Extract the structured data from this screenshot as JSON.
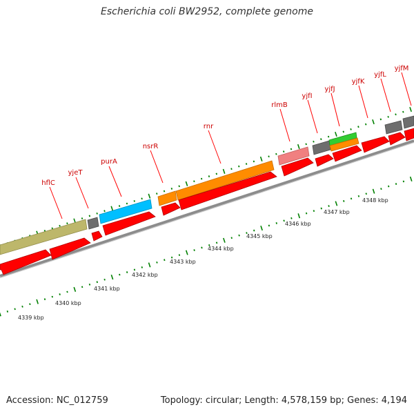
{
  "title": "Escherichia coli BW2952, complete genome",
  "footer": {
    "accession": "Accession: NC_012759",
    "stats": "Topology: circular; Length: 4,578,159 bp; Genes: 4,194"
  },
  "colors": {
    "cds": "#ff0000",
    "olive_feature": "#bdb76b",
    "gray_feature": "#6e6e6e",
    "cyan_feature": "#00bfff",
    "orange_feature": "#ff8c00",
    "pink_feature": "#f08080",
    "green_feature": "#32cd32",
    "backbone": "#8c8c8c",
    "tick": "#008000",
    "label": "#cc0000"
  },
  "gene_labels": [
    "hflC",
    "yjeT",
    "purA",
    "nsrR",
    "rnr",
    "rlmB",
    "yjfI",
    "yjfJ",
    "yjfK",
    "yjfL",
    "yjfM"
  ],
  "kbp_labels": [
    "4339 kbp",
    "4340 kbp",
    "4341 kbp",
    "4342 kbp",
    "4343 kbp",
    "4344 kbp",
    "4345 kbp",
    "4346 kbp",
    "4347 kbp",
    "4348 kbp"
  ]
}
